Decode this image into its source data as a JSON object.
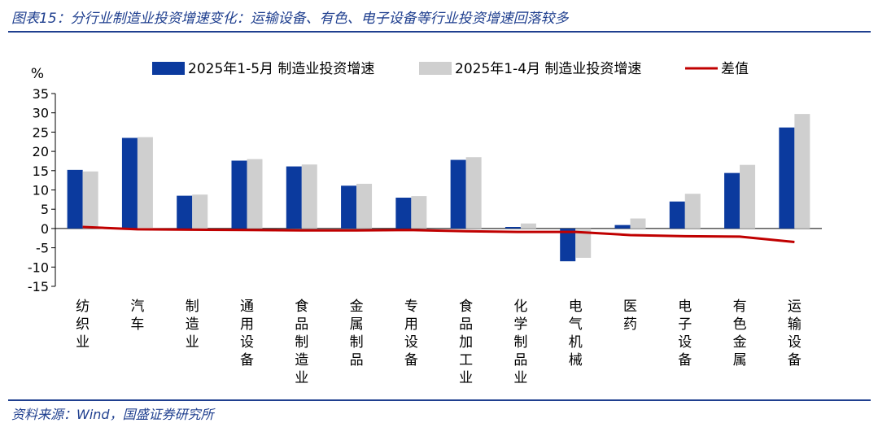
{
  "title": "图表15：分行业制造业投资增速变化：运输设备、有色、电子设备等行业投资增速回落较多",
  "source": "资料来源：Wind，国盛证券研究所",
  "colors": {
    "series1": "#0b3a9e",
    "series2": "#cfcfcf",
    "diff": "#c00000",
    "header": "#1f3f8f"
  },
  "chart_data": {
    "type": "bar",
    "ylabel": "%",
    "ylim": [
      -15,
      35
    ],
    "yticks": [
      35,
      30,
      25,
      20,
      15,
      10,
      5,
      0,
      -5,
      -10,
      -15
    ],
    "categories": [
      "纺织业",
      "汽车",
      "制造业",
      "通用设备",
      "食品制造业",
      "金属制品",
      "专用设备",
      "食品加工业",
      "化学制品业",
      "电气机械",
      "医药",
      "电子设备",
      "有色金属",
      "运输设备"
    ],
    "series": [
      {
        "name": "2025年1-5月 制造业投资增速",
        "kind": "bar",
        "values": [
          15.2,
          23.5,
          8.5,
          17.6,
          16.1,
          11.1,
          8.0,
          17.8,
          0.4,
          -8.5,
          0.9,
          7.0,
          14.4,
          26.2
        ]
      },
      {
        "name": "2025年1-4月 制造业投资增速",
        "kind": "bar",
        "values": [
          14.8,
          23.7,
          8.8,
          18.0,
          16.6,
          11.6,
          8.4,
          18.5,
          1.3,
          -7.6,
          2.6,
          9.0,
          16.5,
          29.7
        ]
      },
      {
        "name": "差值",
        "kind": "line",
        "values": [
          0.4,
          -0.2,
          -0.3,
          -0.4,
          -0.5,
          -0.5,
          -0.4,
          -0.7,
          -0.9,
          -0.9,
          -1.7,
          -2.0,
          -2.1,
          -3.5
        ]
      }
    ]
  }
}
